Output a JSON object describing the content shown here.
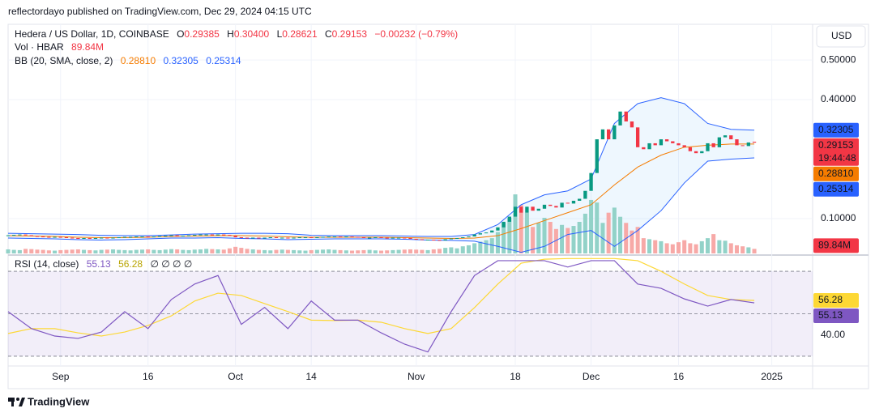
{
  "header": {
    "published": "reflectordayo published on TradingView.com, Dec 29, 2024 04:15 UTC"
  },
  "footer": {
    "brand": "TradingView"
  },
  "chart_data": [
    {
      "type": "candlestick",
      "currency": "USD",
      "legend": {
        "symbol": "Hedera / US Dollar, 1D, COINBASE",
        "o_label": "O",
        "o": "0.29385",
        "h_label": "H",
        "h": "0.30400",
        "l_label": "L",
        "l": "0.28621",
        "c_label": "C",
        "c": "0.29153",
        "change": "−0.00232 (−0.79%)",
        "countdown": "19:44:48"
      },
      "x": [
        "2024-08-23",
        "2024-08-24",
        "2024-08-25",
        "2024-08-26",
        "2024-08-27",
        "2024-08-28",
        "2024-08-29",
        "2024-08-30",
        "2024-08-31",
        "2024-09-01",
        "2024-09-02",
        "2024-09-03",
        "2024-09-04",
        "2024-09-05",
        "2024-09-06",
        "2024-09-07",
        "2024-09-08",
        "2024-09-09",
        "2024-09-10",
        "2024-09-11",
        "2024-09-12",
        "2024-09-13",
        "2024-09-14",
        "2024-09-15",
        "2024-09-16",
        "2024-09-17",
        "2024-09-18",
        "2024-09-19",
        "2024-09-20",
        "2024-09-21",
        "2024-09-22",
        "2024-09-23",
        "2024-09-24",
        "2024-09-25",
        "2024-09-26",
        "2024-09-27",
        "2024-09-28",
        "2024-09-29",
        "2024-09-30",
        "2024-10-01",
        "2024-10-02",
        "2024-10-03",
        "2024-10-04",
        "2024-10-05",
        "2024-10-06",
        "2024-10-07",
        "2024-10-08",
        "2024-10-09",
        "2024-10-10",
        "2024-10-11",
        "2024-10-12",
        "2024-10-13",
        "2024-10-14",
        "2024-10-15",
        "2024-10-16",
        "2024-10-17",
        "2024-10-18",
        "2024-10-19",
        "2024-10-20",
        "2024-10-21",
        "2024-10-22",
        "2024-10-23",
        "2024-10-24",
        "2024-10-25",
        "2024-10-26",
        "2024-10-27",
        "2024-10-28",
        "2024-10-29",
        "2024-10-30",
        "2024-10-31",
        "2024-11-01",
        "2024-11-02",
        "2024-11-03",
        "2024-11-04",
        "2024-11-05",
        "2024-11-06",
        "2024-11-07",
        "2024-11-08",
        "2024-11-09",
        "2024-11-10",
        "2024-11-11",
        "2024-11-12",
        "2024-11-13",
        "2024-11-14",
        "2024-11-15",
        "2024-11-16",
        "2024-11-17",
        "2024-11-18",
        "2024-11-19",
        "2024-11-20",
        "2024-11-21",
        "2024-11-22",
        "2024-11-23",
        "2024-11-24",
        "2024-11-25",
        "2024-11-26",
        "2024-11-27",
        "2024-11-28",
        "2024-11-29",
        "2024-11-30",
        "2024-12-01",
        "2024-12-02",
        "2024-12-03",
        "2024-12-04",
        "2024-12-05",
        "2024-12-06",
        "2024-12-07",
        "2024-12-08",
        "2024-12-09",
        "2024-12-10",
        "2024-12-11",
        "2024-12-12",
        "2024-12-13",
        "2024-12-14",
        "2024-12-15",
        "2024-12-16",
        "2024-12-17",
        "2024-12-18",
        "2024-12-19",
        "2024-12-20",
        "2024-12-21",
        "2024-12-22",
        "2024-12-23",
        "2024-12-24",
        "2024-12-25",
        "2024-12-26",
        "2024-12-27",
        "2024-12-28",
        "2024-12-29"
      ],
      "xlim": [
        "2024-08-23",
        "2025-01-08"
      ],
      "xticks": [
        {
          "value": "2024-09-01",
          "label": "Sep"
        },
        {
          "value": "2024-09-16",
          "label": "16"
        },
        {
          "value": "2024-10-01",
          "label": "Oct"
        },
        {
          "value": "2024-10-14",
          "label": "14"
        },
        {
          "value": "2024-11-01",
          "label": "Nov"
        },
        {
          "value": "2024-11-18",
          "label": "18"
        },
        {
          "value": "2024-12-01",
          "label": "Dec"
        },
        {
          "value": "2024-12-16",
          "label": "16"
        },
        {
          "value": "2025-01-01",
          "label": "2025"
        }
      ],
      "ylim": [
        0.0122,
        0.59
      ],
      "yticks": [
        {
          "value": 0.1,
          "label": "0.10000"
        },
        {
          "value": 0.4,
          "label": "0.40000"
        },
        {
          "value": 0.5,
          "label": "0.50000"
        }
      ],
      "up_color": "#089981",
      "down_color": "#f23645",
      "open": [
        0.057,
        0.058,
        0.059,
        0.06,
        0.058,
        0.056,
        0.055,
        0.054,
        0.053,
        0.054,
        0.053,
        0.052,
        0.051,
        0.05,
        0.051,
        0.05,
        0.051,
        0.052,
        0.051,
        0.052,
        0.053,
        0.054,
        0.054,
        0.055,
        0.055,
        0.054,
        0.055,
        0.056,
        0.057,
        0.058,
        0.057,
        0.057,
        0.058,
        0.059,
        0.06,
        0.06,
        0.059,
        0.06,
        0.059,
        0.057,
        0.053,
        0.052,
        0.051,
        0.052,
        0.051,
        0.052,
        0.053,
        0.052,
        0.052,
        0.051,
        0.052,
        0.053,
        0.053,
        0.052,
        0.053,
        0.054,
        0.055,
        0.055,
        0.054,
        0.055,
        0.054,
        0.053,
        0.052,
        0.052,
        0.053,
        0.052,
        0.051,
        0.052,
        0.052,
        0.051,
        0.049,
        0.048,
        0.047,
        0.047,
        0.046,
        0.045,
        0.048,
        0.05,
        0.051,
        0.053,
        0.055,
        0.06,
        0.063,
        0.065,
        0.07,
        0.078,
        0.092,
        0.105,
        0.13,
        0.115,
        0.13,
        0.12,
        0.125,
        0.135,
        0.132,
        0.128,
        0.14,
        0.138,
        0.145,
        0.15,
        0.17,
        0.215,
        0.3,
        0.325,
        0.3,
        0.335,
        0.37,
        0.345,
        0.33,
        0.28,
        0.275,
        0.29,
        0.285,
        0.3,
        0.295,
        0.29,
        0.285,
        0.28,
        0.27,
        0.265,
        0.27,
        0.29,
        0.28,
        0.305,
        0.31,
        0.3,
        0.285,
        0.283,
        0.29385
      ],
      "close": [
        0.058,
        0.059,
        0.06,
        0.058,
        0.056,
        0.055,
        0.054,
        0.053,
        0.054,
        0.053,
        0.052,
        0.051,
        0.05,
        0.051,
        0.05,
        0.051,
        0.052,
        0.051,
        0.052,
        0.053,
        0.054,
        0.054,
        0.055,
        0.055,
        0.054,
        0.055,
        0.056,
        0.057,
        0.058,
        0.057,
        0.057,
        0.058,
        0.059,
        0.06,
        0.06,
        0.059,
        0.06,
        0.059,
        0.057,
        0.053,
        0.052,
        0.051,
        0.052,
        0.051,
        0.052,
        0.053,
        0.052,
        0.052,
        0.051,
        0.052,
        0.053,
        0.053,
        0.052,
        0.053,
        0.054,
        0.055,
        0.055,
        0.054,
        0.055,
        0.054,
        0.053,
        0.052,
        0.052,
        0.053,
        0.052,
        0.051,
        0.052,
        0.052,
        0.051,
        0.049,
        0.048,
        0.047,
        0.047,
        0.046,
        0.045,
        0.048,
        0.05,
        0.051,
        0.053,
        0.055,
        0.06,
        0.063,
        0.065,
        0.07,
        0.078,
        0.092,
        0.105,
        0.13,
        0.115,
        0.13,
        0.12,
        0.125,
        0.135,
        0.132,
        0.128,
        0.14,
        0.138,
        0.145,
        0.15,
        0.17,
        0.215,
        0.3,
        0.325,
        0.3,
        0.335,
        0.37,
        0.345,
        0.33,
        0.28,
        0.275,
        0.29,
        0.285,
        0.3,
        0.295,
        0.29,
        0.285,
        0.28,
        0.27,
        0.265,
        0.27,
        0.29,
        0.28,
        0.305,
        0.31,
        0.3,
        0.285,
        0.283,
        0.292,
        0.29153
      ],
      "volume": {
        "name": "Vol · HBAR",
        "last_label": "89.84M",
        "ylim": [
          0,
          4500
        ],
        "up_color": "#92d2c8",
        "down_color": "#f7a9a7",
        "values": [
          80,
          70,
          65,
          90,
          85,
          75,
          70,
          60,
          55,
          65,
          70,
          75,
          80,
          70,
          65,
          60,
          70,
          75,
          80,
          70,
          65,
          60,
          70,
          75,
          80,
          70,
          65,
          75,
          85,
          80,
          70,
          65,
          75,
          80,
          90,
          85,
          80,
          75,
          100,
          130,
          110,
          90,
          80,
          70,
          65,
          60,
          70,
          75,
          70,
          65,
          60,
          55,
          65,
          70,
          75,
          80,
          70,
          65,
          60,
          55,
          60,
          65,
          70,
          60,
          55,
          60,
          65,
          70,
          75,
          80,
          75,
          70,
          65,
          80,
          90,
          110,
          120,
          100,
          140,
          160,
          200,
          230,
          260,
          300,
          420,
          600,
          700,
          1160,
          950,
          800,
          520,
          600,
          700,
          620,
          480,
          560,
          500,
          540,
          620,
          780,
          1050,
          1000,
          600,
          800,
          900,
          720,
          600,
          450,
          520,
          300,
          280,
          260,
          240,
          200,
          180,
          220,
          260,
          200,
          180,
          240,
          300,
          380,
          260,
          250,
          200,
          160,
          140,
          120,
          89.84
        ]
      },
      "bands": {
        "name": "BB (20, SMA, close, 2)",
        "value_labels": [
          "0.28810",
          "0.32305",
          "0.25314"
        ],
        "fill": "rgba(33,150,243,0.08)",
        "x": [
          "2024-08-23",
          "2024-08-27",
          "2024-08-31",
          "2024-09-04",
          "2024-09-08",
          "2024-09-12",
          "2024-09-16",
          "2024-09-20",
          "2024-09-24",
          "2024-09-28",
          "2024-10-02",
          "2024-10-06",
          "2024-10-10",
          "2024-10-14",
          "2024-10-18",
          "2024-10-22",
          "2024-10-26",
          "2024-10-30",
          "2024-11-03",
          "2024-11-07",
          "2024-11-11",
          "2024-11-15",
          "2024-11-19",
          "2024-11-23",
          "2024-11-27",
          "2024-12-01",
          "2024-12-05",
          "2024-12-09",
          "2024-12-13",
          "2024-12-17",
          "2024-12-21",
          "2024-12-25",
          "2024-12-29"
        ],
        "series": [
          {
            "color": "#f57c00",
            "values": [
              0.057,
              0.056,
              0.055,
              0.053,
              0.052,
              0.052,
              0.053,
              0.055,
              0.056,
              0.057,
              0.057,
              0.056,
              0.054,
              0.053,
              0.053,
              0.053,
              0.053,
              0.052,
              0.051,
              0.05,
              0.051,
              0.057,
              0.075,
              0.095,
              0.115,
              0.135,
              0.185,
              0.23,
              0.26,
              0.28,
              0.285,
              0.288,
              0.2881
            ]
          },
          {
            "color": "#2962ff",
            "values": [
              0.063,
              0.062,
              0.061,
              0.06,
              0.058,
              0.057,
              0.057,
              0.059,
              0.061,
              0.062,
              0.063,
              0.063,
              0.062,
              0.058,
              0.057,
              0.057,
              0.057,
              0.056,
              0.055,
              0.055,
              0.06,
              0.085,
              0.135,
              0.16,
              0.17,
              0.2,
              0.34,
              0.39,
              0.405,
              0.39,
              0.34,
              0.325,
              0.32305
            ]
          },
          {
            "color": "#2962ff",
            "values": [
              0.051,
              0.05,
              0.049,
              0.047,
              0.046,
              0.047,
              0.049,
              0.051,
              0.051,
              0.052,
              0.05,
              0.049,
              0.047,
              0.048,
              0.049,
              0.049,
              0.049,
              0.048,
              0.046,
              0.045,
              0.043,
              0.03,
              0.015,
              0.03,
              0.06,
              0.07,
              0.03,
              0.07,
              0.12,
              0.19,
              0.245,
              0.25,
              0.25314
            ]
          }
        ]
      }
    },
    {
      "type": "line",
      "name": "RSI (14, close)",
      "value_labels": [
        "55.13",
        "56.28"
      ],
      "extra": "∅ ∅ ∅ ∅",
      "x": [
        "2024-08-23",
        "2024-08-27",
        "2024-08-31",
        "2024-09-04",
        "2024-09-08",
        "2024-09-12",
        "2024-09-16",
        "2024-09-20",
        "2024-09-24",
        "2024-09-28",
        "2024-10-02",
        "2024-10-06",
        "2024-10-10",
        "2024-10-14",
        "2024-10-18",
        "2024-10-22",
        "2024-10-26",
        "2024-10-30",
        "2024-11-03",
        "2024-11-07",
        "2024-11-11",
        "2024-11-15",
        "2024-11-19",
        "2024-11-23",
        "2024-11-27",
        "2024-12-01",
        "2024-12-05",
        "2024-12-09",
        "2024-12-13",
        "2024-12-17",
        "2024-12-21",
        "2024-12-25",
        "2024-12-29"
      ],
      "ylim": [
        25.4,
        76.5
      ],
      "yticks": [
        {
          "value": 40,
          "label": "40.00"
        }
      ],
      "levels": [
        70,
        50,
        30
      ],
      "band_fill": "rgba(126,87,194,0.1)",
      "series": [
        {
          "color": "#7e57c2",
          "values": [
            51,
            43,
            39.5,
            38.4,
            41.4,
            51,
            43,
            56.7,
            64,
            68,
            45,
            53,
            43,
            56,
            47,
            47,
            41,
            35.7,
            32,
            51,
            68,
            75,
            75,
            75,
            72,
            75,
            75,
            64,
            62,
            57,
            53.6,
            56.7,
            55.13
          ]
        },
        {
          "color": "#fdd835",
          "values": [
            40.7,
            43,
            43,
            41,
            39.5,
            41.4,
            44.5,
            49,
            56,
            59.7,
            58.6,
            54.8,
            51,
            47,
            46.8,
            47,
            46,
            43,
            40.7,
            43,
            52.9,
            64,
            73.8,
            75.7,
            76,
            76,
            76,
            75,
            70,
            64,
            58.6,
            56.7,
            56.28
          ]
        }
      ]
    }
  ]
}
